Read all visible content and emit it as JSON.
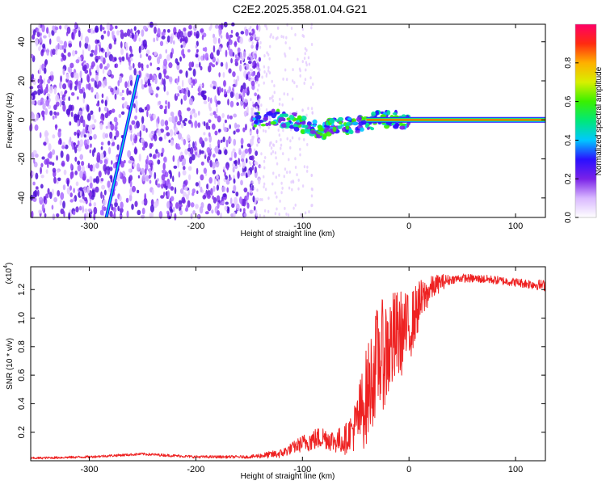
{
  "title": "C2E2.2025.358.01.04.G21",
  "colors": {
    "snr_line": "#ee2222",
    "spectrogram_bg": "#ffffff",
    "axis": "#000000"
  },
  "chart_data": [
    {
      "type": "heatmap",
      "name": "spectrogram",
      "xlabel": "Height of straight line (km)",
      "ylabel": "Frequency (Hz)",
      "xlim": [
        -355,
        128
      ],
      "ylim": [
        -50,
        49
      ],
      "xticks": [
        -300,
        -200,
        -100,
        0,
        100
      ],
      "xtick_labels": [
        "-300",
        "-200",
        "-100",
        "0",
        "100"
      ],
      "yticks": [
        -40,
        -20,
        0,
        20,
        40
      ],
      "ytick_labels": [
        "-40",
        "-20",
        "0",
        "20",
        "40"
      ],
      "colorbar": {
        "label": "Normalized spectral amplitude",
        "range": [
          0,
          1
        ],
        "ticks": [
          0,
          0.2,
          0.4,
          0.6,
          0.8
        ],
        "tick_labels": [
          "0.0",
          "0.2",
          "0.4",
          "0.6",
          "0.8"
        ],
        "colormap": [
          "#ffffff",
          "#d9b8ff",
          "#7a22e8",
          "#2a10ff",
          "#00c8ff",
          "#00e87a",
          "#39f000",
          "#d8f000",
          "#ffb000",
          "#ff2a10",
          "#ff0066"
        ]
      },
      "features": {
        "noise_region_x": [
          -355,
          -140
        ],
        "streak": {
          "x_start": -284,
          "y_start": -50,
          "x_end": -254,
          "y_end": 23
        },
        "carrier": {
          "x_start": -145,
          "x_end": 128,
          "freq": 0
        },
        "wander": [
          [
            -140,
            0
          ],
          [
            -120,
            1
          ],
          [
            -100,
            -2
          ],
          [
            -80,
            -6
          ],
          [
            -70,
            -2
          ],
          [
            -60,
            -3
          ],
          [
            -45,
            -2
          ],
          [
            -30,
            0
          ],
          [
            -15,
            0
          ],
          [
            0,
            0
          ]
        ]
      }
    },
    {
      "type": "line",
      "name": "snr",
      "xlabel": "Height of straight line (km)",
      "ylabel": "SNR (10 * v/v)",
      "scale_label": "(x10",
      "scale_exponent": "4",
      "scale_close": ")",
      "xlim": [
        -355,
        128
      ],
      "ylim": [
        0,
        13600
      ],
      "xticks": [
        -300,
        -200,
        -100,
        0,
        100
      ],
      "xtick_labels": [
        "-300",
        "-200",
        "-100",
        "0",
        "100"
      ],
      "yticks": [
        2000,
        4000,
        6000,
        8000,
        10000,
        12000
      ],
      "ytick_labels": [
        "0.2",
        "0.4",
        "0.6",
        "0.8",
        "1.0",
        "1.2"
      ],
      "series": [
        {
          "name": "SNR",
          "envelope": [
            [
              -355,
              200
            ],
            [
              -300,
              300
            ],
            [
              -250,
              500
            ],
            [
              -200,
              300
            ],
            [
              -150,
              300
            ],
            [
              -120,
              600
            ],
            [
              -100,
              1400
            ],
            [
              -90,
              1700
            ],
            [
              -80,
              1900
            ],
            [
              -70,
              1600
            ],
            [
              -60,
              1800
            ],
            [
              -50,
              3000
            ],
            [
              -40,
              5500
            ],
            [
              -30,
              8200
            ],
            [
              -20,
              9000
            ],
            [
              -10,
              9800
            ],
            [
              0,
              10000
            ],
            [
              10,
              11500
            ],
            [
              20,
              12300
            ],
            [
              30,
              12700
            ],
            [
              50,
              12900
            ],
            [
              75,
              12800
            ],
            [
              100,
              12600
            ],
            [
              128,
              12400
            ]
          ],
          "noise": [
            [
              -355,
              80
            ],
            [
              -150,
              100
            ],
            [
              -110,
              400
            ],
            [
              -90,
              800
            ],
            [
              -70,
              800
            ],
            [
              -55,
              1200
            ],
            [
              -40,
              3500
            ],
            [
              -20,
              4000
            ],
            [
              0,
              2500
            ],
            [
              20,
              900
            ],
            [
              40,
              300
            ],
            [
              100,
              300
            ],
            [
              128,
              400
            ]
          ]
        }
      ]
    }
  ]
}
